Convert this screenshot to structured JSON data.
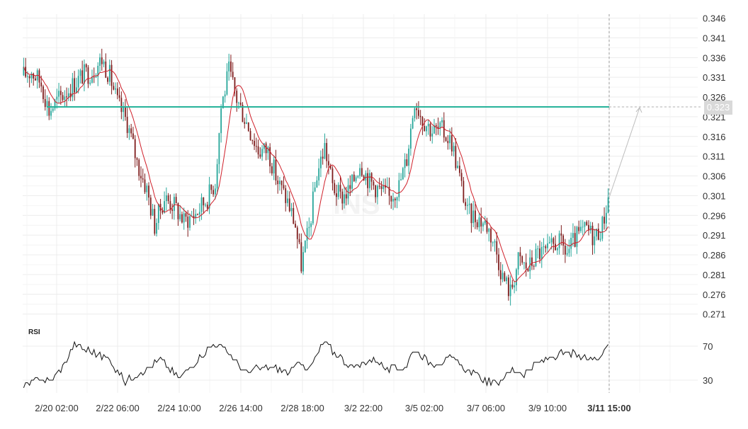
{
  "chart_data": {
    "type": "candlestick",
    "watermark": "INS",
    "price_axis": {
      "ticks": [
        "0.346",
        "0.341",
        "0.336",
        "0.331",
        "0.326",
        "0.321",
        "0.316",
        "0.311",
        "0.306",
        "0.301",
        "0.296",
        "0.291",
        "0.286",
        "0.281",
        "0.276",
        "0.271"
      ],
      "range": [
        0.2695,
        0.347
      ]
    },
    "time_axis": {
      "ticks": [
        "2/20 02:00",
        "2/22 06:00",
        "2/24 10:00",
        "2/26 14:00",
        "2/28 18:00",
        "3/2 22:00",
        "3/5 02:00",
        "3/7 06:00",
        "3/9 10:00",
        "3/11 15:00"
      ],
      "current_label_index": 9
    },
    "target_line": {
      "value": 0.3235,
      "label": "0.323",
      "color": "#26b39a"
    },
    "colors": {
      "up": "#26a69a",
      "down": "#7f1d1d",
      "moving_average": "#d0202a",
      "rsi_line": "#111111"
    },
    "price_path": [
      [
        0,
        0.3315
      ],
      [
        4,
        0.3325
      ],
      [
        9,
        0.3295
      ],
      [
        13,
        0.3225
      ],
      [
        18,
        0.3255
      ],
      [
        24,
        0.3285
      ],
      [
        30,
        0.3315
      ],
      [
        35,
        0.3325
      ],
      [
        40,
        0.3355
      ],
      [
        44,
        0.3315
      ],
      [
        48,
        0.3245
      ],
      [
        53,
        0.3195
      ],
      [
        58,
        0.3095
      ],
      [
        63,
        0.3025
      ],
      [
        67,
        0.2935
      ],
      [
        72,
        0.3005
      ],
      [
        77,
        0.2985
      ],
      [
        82,
        0.2945
      ],
      [
        88,
        0.2965
      ],
      [
        94,
        0.3005
      ],
      [
        98,
        0.3045
      ],
      [
        101,
        0.3235
      ],
      [
        105,
        0.3325
      ],
      [
        109,
        0.3255
      ],
      [
        115,
        0.3185
      ],
      [
        120,
        0.3125
      ],
      [
        125,
        0.3125
      ],
      [
        130,
        0.3045
      ],
      [
        135,
        0.2995
      ],
      [
        139,
        0.2935
      ],
      [
        142,
        0.2835
      ],
      [
        146,
        0.2925
      ],
      [
        150,
        0.3065
      ],
      [
        154,
        0.3135
      ],
      [
        158,
        0.3035
      ],
      [
        162,
        0.3005
      ],
      [
        167,
        0.3025
      ],
      [
        172,
        0.3095
      ],
      [
        177,
        0.3045
      ],
      [
        182,
        0.3025
      ],
      [
        187,
        0.3005
      ],
      [
        192,
        0.3035
      ],
      [
        196,
        0.3105
      ],
      [
        200,
        0.3255
      ],
      [
        204,
        0.3205
      ],
      [
        209,
        0.3175
      ],
      [
        214,
        0.3175
      ],
      [
        219,
        0.3145
      ],
      [
        223,
        0.3055
      ],
      [
        227,
        0.2965
      ],
      [
        232,
        0.2955
      ],
      [
        237,
        0.2935
      ],
      [
        241,
        0.2885
      ],
      [
        245,
        0.2805
      ],
      [
        249,
        0.2765
      ],
      [
        253,
        0.2845
      ],
      [
        258,
        0.2825
      ],
      [
        263,
        0.2865
      ],
      [
        268,
        0.2865
      ],
      [
        273,
        0.2895
      ],
      [
        278,
        0.2865
      ],
      [
        283,
        0.2905
      ],
      [
        288,
        0.2925
      ],
      [
        292,
        0.2905
      ],
      [
        296,
        0.2935
      ],
      [
        299,
        0.3005
      ]
    ],
    "rsi": {
      "label": "RSI",
      "ticks": [
        "70",
        "30"
      ],
      "range": [
        15,
        90
      ],
      "path": [
        [
          0,
          21
        ],
        [
          8,
          33
        ],
        [
          14,
          29
        ],
        [
          20,
          45
        ],
        [
          26,
          72
        ],
        [
          32,
          66
        ],
        [
          38,
          60
        ],
        [
          44,
          55
        ],
        [
          48,
          40
        ],
        [
          52,
          28
        ],
        [
          58,
          38
        ],
        [
          64,
          44
        ],
        [
          70,
          55
        ],
        [
          76,
          40
        ],
        [
          80,
          32
        ],
        [
          86,
          48
        ],
        [
          92,
          62
        ],
        [
          98,
          73
        ],
        [
          104,
          65
        ],
        [
          110,
          48
        ],
        [
          114,
          38
        ],
        [
          118,
          42
        ],
        [
          124,
          45
        ],
        [
          130,
          44
        ],
        [
          136,
          38
        ],
        [
          142,
          52
        ],
        [
          146,
          42
        ],
        [
          150,
          60
        ],
        [
          154,
          76
        ],
        [
          158,
          64
        ],
        [
          162,
          58
        ],
        [
          166,
          48
        ],
        [
          170,
          44
        ],
        [
          174,
          52
        ],
        [
          180,
          55
        ],
        [
          186,
          42
        ],
        [
          192,
          44
        ],
        [
          196,
          48
        ],
        [
          200,
          68
        ],
        [
          204,
          58
        ],
        [
          208,
          50
        ],
        [
          214,
          52
        ],
        [
          218,
          55
        ],
        [
          222,
          50
        ],
        [
          226,
          42
        ],
        [
          230,
          38
        ],
        [
          236,
          30
        ],
        [
          242,
          26
        ],
        [
          246,
          35
        ],
        [
          250,
          42
        ],
        [
          256,
          38
        ],
        [
          262,
          48
        ],
        [
          268,
          55
        ],
        [
          274,
          60
        ],
        [
          280,
          62
        ],
        [
          286,
          55
        ],
        [
          292,
          55
        ],
        [
          296,
          63
        ],
        [
          299,
          75
        ]
      ]
    }
  }
}
